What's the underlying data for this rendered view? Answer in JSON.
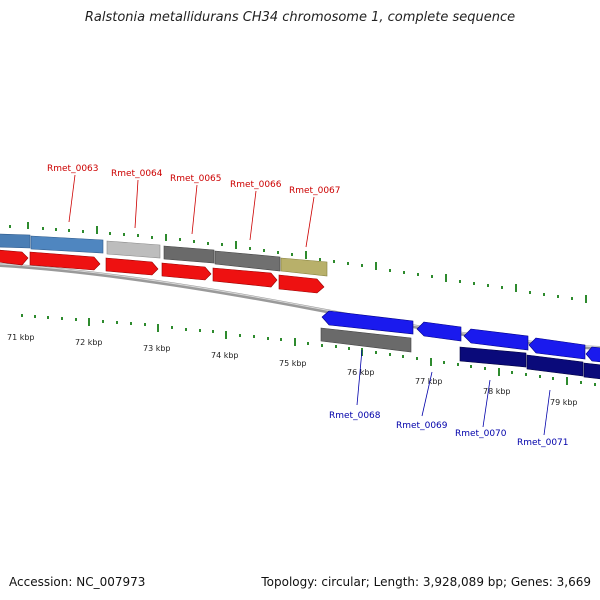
{
  "title": "Ralstonia metallidurans CH34 chromosome 1, complete sequence",
  "footer": {
    "accession": "Accession: NC_007973",
    "stats": "Topology: circular; Length: 3,928,089 bp; Genes: 3,669"
  },
  "colors": {
    "upper_label": "#cc0000",
    "lower_label": "#0000aa",
    "tick": "#228b22",
    "backbone": "#888888"
  },
  "kbp_labels": [
    "71 kbp",
    "72 kbp",
    "73 kbp",
    "74 kbp",
    "75 kbp",
    "76 kbp",
    "77 kbp",
    "78 kbp",
    "79 kbp"
  ],
  "upper_genes": [
    "Rmet_0063",
    "Rmet_0064",
    "Rmet_0065",
    "Rmet_0066",
    "Rmet_0067"
  ],
  "lower_genes": [
    "Rmet_0068",
    "Rmet_0069",
    "Rmet_0070",
    "Rmet_0071"
  ]
}
